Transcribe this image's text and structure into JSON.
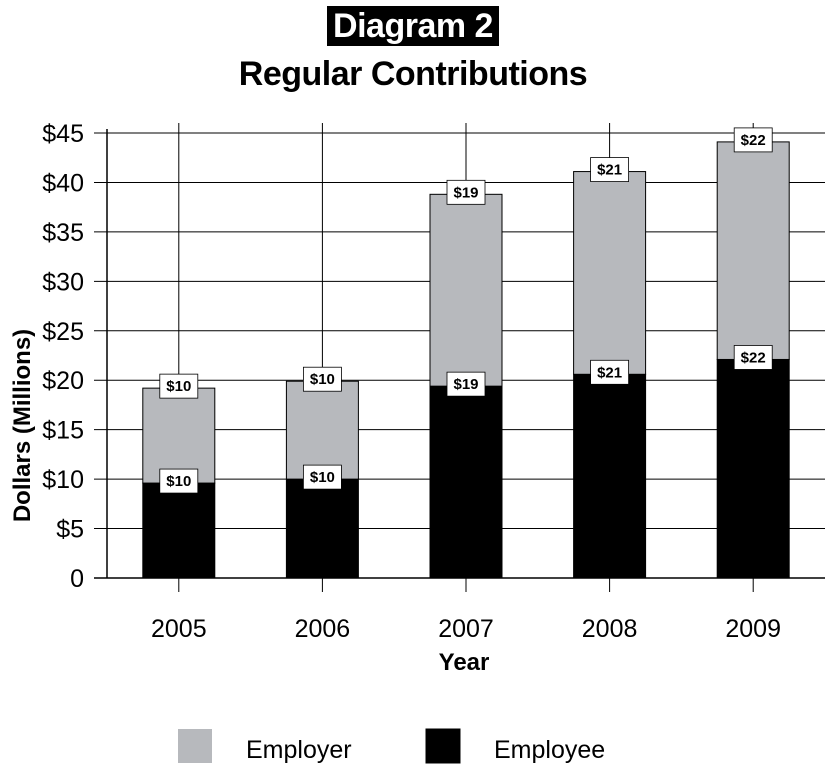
{
  "header": {
    "tag": "Diagram 2",
    "title": "Regular Contributions"
  },
  "chart_data": {
    "type": "bar",
    "stacked": true,
    "categories": [
      "2005",
      "2006",
      "2007",
      "2008",
      "2009"
    ],
    "series": [
      {
        "name": "Employee",
        "color": "#000000",
        "values": [
          9.6,
          10.0,
          19.4,
          20.6,
          22.1
        ],
        "labels": [
          "$10",
          "$10",
          "$19",
          "$21",
          "$22"
        ]
      },
      {
        "name": "Employer",
        "color": "#b7b9bd",
        "values": [
          9.6,
          9.9,
          19.4,
          20.5,
          22.0
        ],
        "labels": [
          "$10",
          "$10",
          "$19",
          "$21",
          "$22"
        ]
      }
    ],
    "xlabel": "Year",
    "ylabel": "Dollars (Millions)",
    "ylim": [
      0,
      45
    ],
    "yticks": [
      0,
      5,
      10,
      15,
      20,
      25,
      30,
      35,
      40,
      45
    ],
    "ytick_labels": [
      "0",
      "$5",
      "$10",
      "$15",
      "$20",
      "$25",
      "$30",
      "$35",
      "$40",
      "$45"
    ],
    "grid": true,
    "legend_placement": "bottom-center",
    "legend_order": [
      "Employer",
      "Employee"
    ]
  }
}
